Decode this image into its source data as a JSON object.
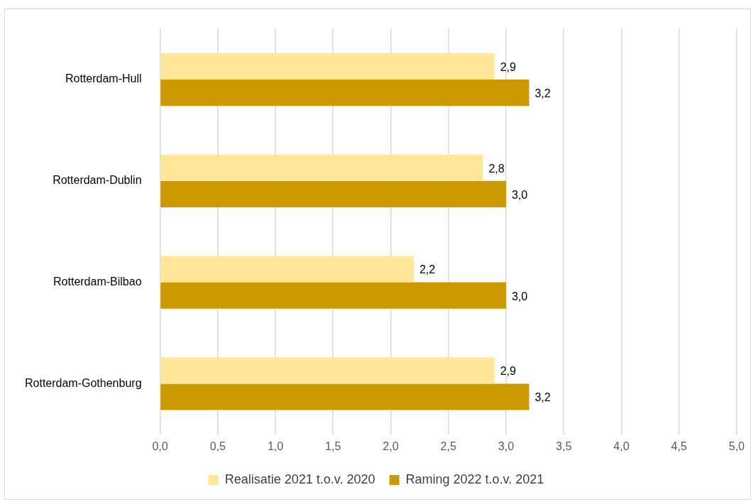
{
  "chart_data": {
    "type": "bar",
    "orientation": "horizontal",
    "categories": [
      "Rotterdam-Hull",
      "Rotterdam-Dublin",
      "Rotterdam-Bilbao",
      "Rotterdam-Gothenburg"
    ],
    "series": [
      {
        "name": "Realisatie 2021 t.o.v. 2020",
        "color": "#ffe699",
        "values": [
          2.9,
          2.8,
          2.2,
          2.9
        ],
        "value_labels": [
          "2,9",
          "2,8",
          "2,2",
          "2,9"
        ]
      },
      {
        "name": "Raming 2022 t.o.v. 2021",
        "color": "#cc9900",
        "values": [
          3.2,
          3.0,
          3.0,
          3.2
        ],
        "value_labels": [
          "3,2",
          "3,0",
          "3,0",
          "3,2"
        ]
      }
    ],
    "xlim": [
      0,
      5
    ],
    "xticks": [
      {
        "value": 0,
        "label": "0,0"
      },
      {
        "value": 0.5,
        "label": "0,5"
      },
      {
        "value": 1,
        "label": "1,0"
      },
      {
        "value": 1.5,
        "label": "1,5"
      },
      {
        "value": 2,
        "label": "2,0"
      },
      {
        "value": 2.5,
        "label": "2,5"
      },
      {
        "value": 3,
        "label": "3,0"
      },
      {
        "value": 3.5,
        "label": "3,5"
      },
      {
        "value": 4,
        "label": "4,0"
      },
      {
        "value": 4.5,
        "label": "4,5"
      },
      {
        "value": 5,
        "label": "5,0"
      }
    ],
    "grid": "x",
    "legend": "bottom"
  }
}
